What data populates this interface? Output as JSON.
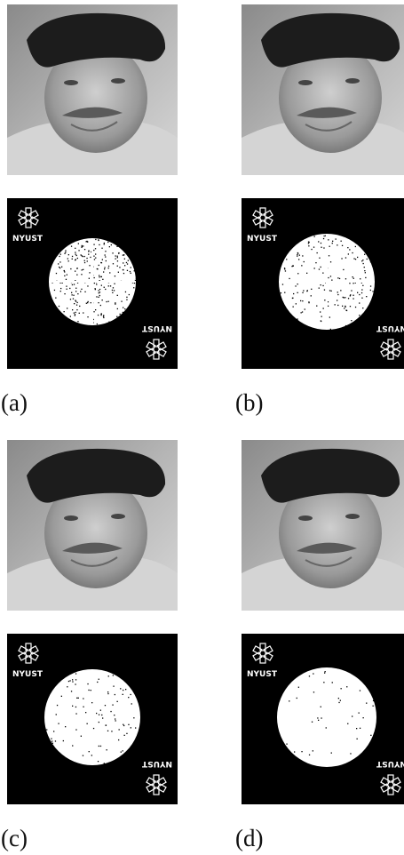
{
  "panels": [
    {
      "label": "(a)",
      "watermark": "NYUST"
    },
    {
      "label": "(b)",
      "watermark": "NYUST"
    },
    {
      "label": "(c)",
      "watermark": "NYUST"
    },
    {
      "label": "(d)",
      "watermark": "NYUST"
    }
  ]
}
